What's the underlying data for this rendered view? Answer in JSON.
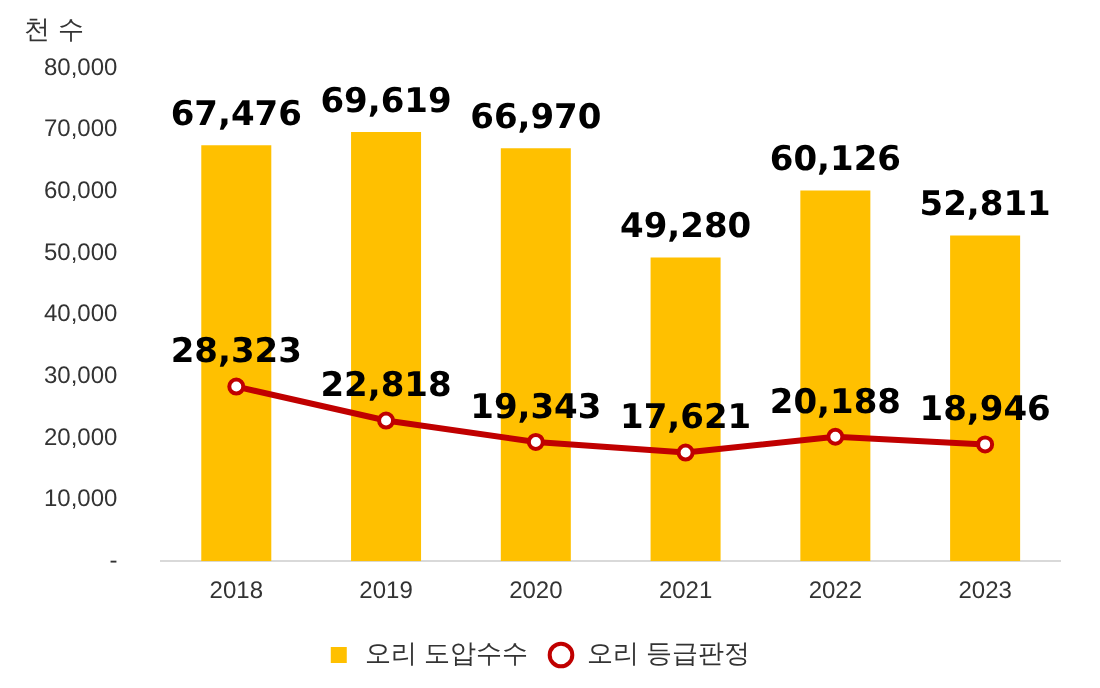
{
  "chart_data": {
    "type": "bar",
    "ylabel": "천 수",
    "categories": [
      "2018",
      "2019",
      "2020",
      "2021",
      "2022",
      "2023"
    ],
    "series": [
      {
        "name": "오리 도압수수",
        "color": "#ffc000",
        "values": [
          67476,
          69619,
          66970,
          49280,
          60126,
          52811
        ],
        "value_labels": [
          "67,476",
          "69,619",
          "66,970",
          "49,280",
          "60,126",
          "52,811"
        ]
      },
      {
        "type": "line",
        "name": "오리 등급판정",
        "color": "#c00000",
        "marker": "circle",
        "values": [
          28323,
          22818,
          19343,
          17621,
          20188,
          18946
        ],
        "value_labels": [
          "28,323",
          "22,818",
          "19,343",
          "17,621",
          "20,188",
          "18,946"
        ]
      }
    ],
    "ylim": [
      0,
      80000
    ],
    "yticks": [
      {
        "value": 0,
        "label": "-"
      },
      {
        "value": 10000,
        "label": "10,000"
      },
      {
        "value": 20000,
        "label": "20,000"
      },
      {
        "value": 30000,
        "label": "30,000"
      },
      {
        "value": 40000,
        "label": "40,000"
      },
      {
        "value": 50000,
        "label": "50,000"
      },
      {
        "value": 60000,
        "label": "60,000"
      },
      {
        "value": 70000,
        "label": "70,000"
      },
      {
        "value": 80000,
        "label": "80,000"
      }
    ],
    "grid": false,
    "legend": "bottom"
  }
}
